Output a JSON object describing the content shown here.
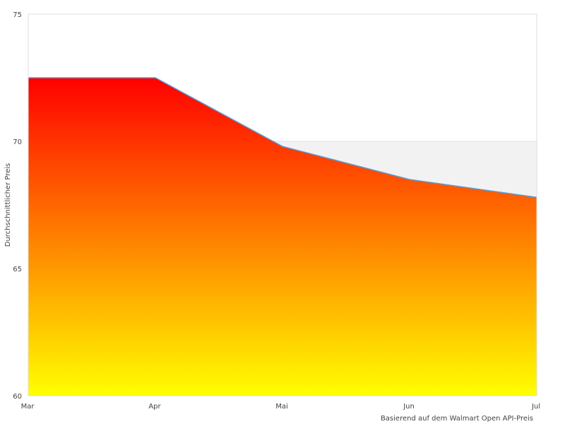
{
  "chart_data": {
    "type": "area",
    "categories": [
      "Mar",
      "Apr",
      "Mai",
      "Jun",
      "Jul"
    ],
    "series": [
      {
        "values": [
          72.5,
          72.5,
          69.8,
          68.5,
          67.8
        ]
      }
    ],
    "title": "",
    "xlabel": "Basierend auf dem Walmart Open API-Preis",
    "ylabel": "Durchschnittlicher Preis",
    "ylim": [
      60,
      75
    ],
    "yticks": [
      "60",
      "65",
      "70",
      "75"
    ],
    "plot_band": [
      60,
      70
    ],
    "grid": false,
    "colors": {
      "fill_top": "#ff0000",
      "fill_bottom": "#ffff00",
      "line": "#5b9bd5",
      "band": "#f2f2f2",
      "border": "#dddddd"
    }
  }
}
